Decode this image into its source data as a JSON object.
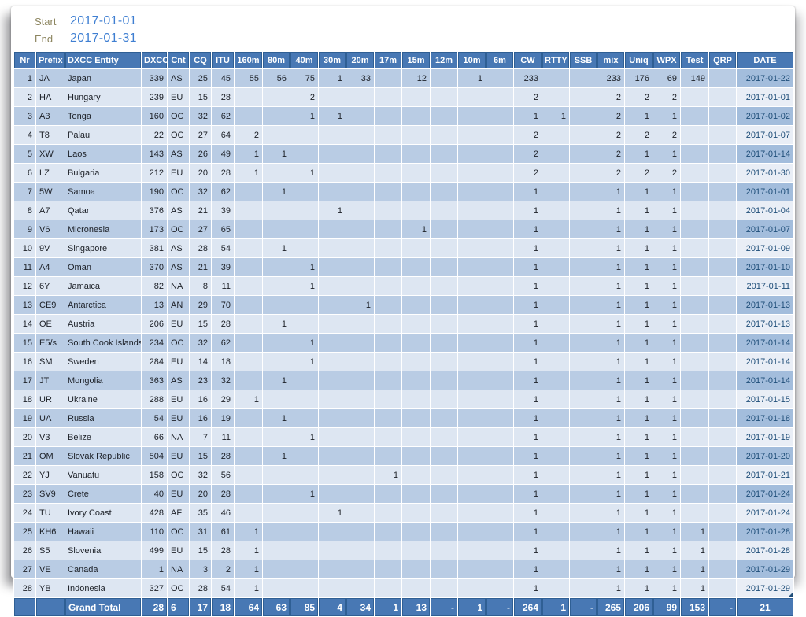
{
  "filters": {
    "start_label": "Start",
    "start_value": "2017-01-01",
    "end_label": "End",
    "end_value": "2017-01-31"
  },
  "colors": {
    "header_bg": "#4878b4",
    "header_border": "#2f5f94",
    "row_odd": "#b9cce4",
    "row_even": "#dde6f2",
    "date_odd": "#a3bddc",
    "date_even": "#e9eef6",
    "date_text": "#1f4e79",
    "filter_label": "#8c855f",
    "filter_value": "#3f7fd2"
  },
  "table": {
    "columns": [
      {
        "id": "nr",
        "label": "Nr",
        "width": 28,
        "align": "right",
        "header_align": "center"
      },
      {
        "id": "prefix",
        "label": "Prefix",
        "width": 37,
        "align": "left",
        "header_align": "center"
      },
      {
        "id": "entity",
        "label": "DXCC Entity",
        "width": 97,
        "align": "left",
        "header_align": "left"
      },
      {
        "id": "dxcc",
        "label": "DXCC",
        "width": 33,
        "align": "right",
        "header_align": "center"
      },
      {
        "id": "cnt",
        "label": "Cnt",
        "width": 28,
        "align": "left",
        "header_align": "center"
      },
      {
        "id": "cq",
        "label": "CQ",
        "width": 28,
        "align": "right",
        "header_align": "center"
      },
      {
        "id": "itu",
        "label": "ITU",
        "width": 29,
        "align": "right",
        "header_align": "center"
      },
      {
        "id": "160m",
        "label": "160m",
        "width": 36,
        "align": "right",
        "header_align": "center"
      },
      {
        "id": "80m",
        "label": "80m",
        "width": 35,
        "align": "right",
        "header_align": "center"
      },
      {
        "id": "40m",
        "label": "40m",
        "width": 36,
        "align": "right",
        "header_align": "center"
      },
      {
        "id": "30m",
        "label": "30m",
        "width": 35,
        "align": "right",
        "header_align": "center"
      },
      {
        "id": "20m",
        "label": "20m",
        "width": 36,
        "align": "right",
        "header_align": "center"
      },
      {
        "id": "17m",
        "label": "17m",
        "width": 35,
        "align": "right",
        "header_align": "center"
      },
      {
        "id": "15m",
        "label": "15m",
        "width": 36,
        "align": "right",
        "header_align": "center"
      },
      {
        "id": "12m",
        "label": "12m",
        "width": 35,
        "align": "right",
        "header_align": "center"
      },
      {
        "id": "10m",
        "label": "10m",
        "width": 36,
        "align": "right",
        "header_align": "center"
      },
      {
        "id": "6m",
        "label": "6m",
        "width": 35,
        "align": "right",
        "header_align": "center"
      },
      {
        "id": "cw",
        "label": "CW",
        "width": 36,
        "align": "right",
        "header_align": "center"
      },
      {
        "id": "rtty",
        "label": "RTTY",
        "width": 35,
        "align": "right",
        "header_align": "center"
      },
      {
        "id": "ssb",
        "label": "SSB",
        "width": 35,
        "align": "right",
        "header_align": "center"
      },
      {
        "id": "mix",
        "label": "mix",
        "width": 35,
        "align": "right",
        "header_align": "center"
      },
      {
        "id": "uniq",
        "label": "Uniq",
        "width": 36,
        "align": "right",
        "header_align": "center"
      },
      {
        "id": "wpx",
        "label": "WPX",
        "width": 35,
        "align": "right",
        "header_align": "center"
      },
      {
        "id": "test",
        "label": "Test",
        "width": 36,
        "align": "right",
        "header_align": "center"
      },
      {
        "id": "qrp",
        "label": "QRP",
        "width": 35,
        "align": "right",
        "header_align": "center"
      },
      {
        "id": "date",
        "label": "DATE",
        "width": 73,
        "align": "right",
        "header_align": "center"
      }
    ],
    "rows": [
      [
        1,
        "JA",
        "Japan",
        339,
        "AS",
        25,
        45,
        55,
        56,
        75,
        1,
        33,
        "",
        12,
        "",
        1,
        "",
        233,
        "",
        "",
        233,
        176,
        69,
        149,
        "",
        "2017-01-22"
      ],
      [
        2,
        "HA",
        "Hungary",
        239,
        "EU",
        15,
        28,
        "",
        "",
        2,
        "",
        "",
        "",
        "",
        "",
        "",
        "",
        2,
        "",
        "",
        2,
        2,
        2,
        "",
        "",
        "2017-01-01"
      ],
      [
        3,
        "A3",
        "Tonga",
        160,
        "OC",
        32,
        62,
        "",
        "",
        1,
        1,
        "",
        "",
        "",
        "",
        "",
        "",
        1,
        1,
        "",
        2,
        1,
        1,
        "",
        "",
        "2017-01-02"
      ],
      [
        4,
        "T8",
        "Palau",
        22,
        "OC",
        27,
        64,
        2,
        "",
        "",
        "",
        "",
        "",
        "",
        "",
        "",
        "",
        2,
        "",
        "",
        2,
        2,
        2,
        "",
        "",
        "2017-01-07"
      ],
      [
        5,
        "XW",
        "Laos",
        143,
        "AS",
        26,
        49,
        1,
        1,
        "",
        "",
        "",
        "",
        "",
        "",
        "",
        "",
        2,
        "",
        "",
        2,
        1,
        1,
        "",
        "",
        "2017-01-14"
      ],
      [
        6,
        "LZ",
        "Bulgaria",
        212,
        "EU",
        20,
        28,
        1,
        "",
        1,
        "",
        "",
        "",
        "",
        "",
        "",
        "",
        2,
        "",
        "",
        2,
        2,
        2,
        "",
        "",
        "2017-01-30"
      ],
      [
        7,
        "5W",
        "Samoa",
        190,
        "OC",
        32,
        62,
        "",
        1,
        "",
        "",
        "",
        "",
        "",
        "",
        "",
        "",
        1,
        "",
        "",
        1,
        1,
        1,
        "",
        "",
        "2017-01-01"
      ],
      [
        8,
        "A7",
        "Qatar",
        376,
        "AS",
        21,
        39,
        "",
        "",
        "",
        1,
        "",
        "",
        "",
        "",
        "",
        "",
        1,
        "",
        "",
        1,
        1,
        1,
        "",
        "",
        "2017-01-04"
      ],
      [
        9,
        "V6",
        "Micronesia",
        173,
        "OC",
        27,
        65,
        "",
        "",
        "",
        "",
        "",
        "",
        1,
        "",
        "",
        "",
        1,
        "",
        "",
        1,
        1,
        1,
        "",
        "",
        "2017-01-07"
      ],
      [
        10,
        "9V",
        "Singapore",
        381,
        "AS",
        28,
        54,
        "",
        1,
        "",
        "",
        "",
        "",
        "",
        "",
        "",
        "",
        1,
        "",
        "",
        1,
        1,
        1,
        "",
        "",
        "2017-01-09"
      ],
      [
        11,
        "A4",
        "Oman",
        370,
        "AS",
        21,
        39,
        "",
        "",
        1,
        "",
        "",
        "",
        "",
        "",
        "",
        "",
        1,
        "",
        "",
        1,
        1,
        1,
        "",
        "",
        "2017-01-10"
      ],
      [
        12,
        "6Y",
        "Jamaica",
        82,
        "NA",
        8,
        11,
        "",
        "",
        1,
        "",
        "",
        "",
        "",
        "",
        "",
        "",
        1,
        "",
        "",
        1,
        1,
        1,
        "",
        "",
        "2017-01-11"
      ],
      [
        13,
        "CE9",
        "Antarctica",
        13,
        "AN",
        29,
        70,
        "",
        "",
        "",
        "",
        1,
        "",
        "",
        "",
        "",
        "",
        1,
        "",
        "",
        1,
        1,
        1,
        "",
        "",
        "2017-01-13"
      ],
      [
        14,
        "OE",
        "Austria",
        206,
        "EU",
        15,
        28,
        "",
        1,
        "",
        "",
        "",
        "",
        "",
        "",
        "",
        "",
        1,
        "",
        "",
        1,
        1,
        1,
        "",
        "",
        "2017-01-13"
      ],
      [
        15,
        "E5/s",
        "South Cook Islands",
        234,
        "OC",
        32,
        62,
        "",
        "",
        1,
        "",
        "",
        "",
        "",
        "",
        "",
        "",
        1,
        "",
        "",
        1,
        1,
        1,
        "",
        "",
        "2017-01-14"
      ],
      [
        16,
        "SM",
        "Sweden",
        284,
        "EU",
        14,
        18,
        "",
        "",
        1,
        "",
        "",
        "",
        "",
        "",
        "",
        "",
        1,
        "",
        "",
        1,
        1,
        1,
        "",
        "",
        "2017-01-14"
      ],
      [
        17,
        "JT",
        "Mongolia",
        363,
        "AS",
        23,
        32,
        "",
        1,
        "",
        "",
        "",
        "",
        "",
        "",
        "",
        "",
        1,
        "",
        "",
        1,
        1,
        1,
        "",
        "",
        "2017-01-14"
      ],
      [
        18,
        "UR",
        "Ukraine",
        288,
        "EU",
        16,
        29,
        1,
        "",
        "",
        "",
        "",
        "",
        "",
        "",
        "",
        "",
        1,
        "",
        "",
        1,
        1,
        1,
        "",
        "",
        "2017-01-15"
      ],
      [
        19,
        "UA",
        "Russia",
        54,
        "EU",
        16,
        19,
        "",
        1,
        "",
        "",
        "",
        "",
        "",
        "",
        "",
        "",
        1,
        "",
        "",
        1,
        1,
        1,
        "",
        "",
        "2017-01-18"
      ],
      [
        20,
        "V3",
        "Belize",
        66,
        "NA",
        7,
        11,
        "",
        "",
        1,
        "",
        "",
        "",
        "",
        "",
        "",
        "",
        1,
        "",
        "",
        1,
        1,
        1,
        "",
        "",
        "2017-01-19"
      ],
      [
        21,
        "OM",
        "Slovak Republic",
        504,
        "EU",
        15,
        28,
        "",
        1,
        "",
        "",
        "",
        "",
        "",
        "",
        "",
        "",
        1,
        "",
        "",
        1,
        1,
        1,
        "",
        "",
        "2017-01-20"
      ],
      [
        22,
        "YJ",
        "Vanuatu",
        158,
        "OC",
        32,
        56,
        "",
        "",
        "",
        "",
        "",
        1,
        "",
        "",
        "",
        "",
        1,
        "",
        "",
        1,
        1,
        1,
        "",
        "",
        "2017-01-21"
      ],
      [
        23,
        "SV9",
        "Crete",
        40,
        "EU",
        20,
        28,
        "",
        "",
        1,
        "",
        "",
        "",
        "",
        "",
        "",
        "",
        1,
        "",
        "",
        1,
        1,
        1,
        "",
        "",
        "2017-01-24"
      ],
      [
        24,
        "TU",
        "Ivory Coast",
        428,
        "AF",
        35,
        46,
        "",
        "",
        "",
        1,
        "",
        "",
        "",
        "",
        "",
        "",
        1,
        "",
        "",
        1,
        1,
        1,
        "",
        "",
        "2017-01-24"
      ],
      [
        25,
        "KH6",
        "Hawaii",
        110,
        "OC",
        31,
        61,
        1,
        "",
        "",
        "",
        "",
        "",
        "",
        "",
        "",
        "",
        1,
        "",
        "",
        1,
        1,
        1,
        1,
        "",
        "2017-01-28"
      ],
      [
        26,
        "S5",
        "Slovenia",
        499,
        "EU",
        15,
        28,
        1,
        "",
        "",
        "",
        "",
        "",
        "",
        "",
        "",
        "",
        1,
        "",
        "",
        1,
        1,
        1,
        1,
        "",
        "2017-01-28"
      ],
      [
        27,
        "VE",
        "Canada",
        1,
        "NA",
        3,
        2,
        1,
        "",
        "",
        "",
        "",
        "",
        "",
        "",
        "",
        "",
        1,
        "",
        "",
        1,
        1,
        1,
        1,
        "",
        "2017-01-29"
      ],
      [
        28,
        "YB",
        "Indonesia",
        327,
        "OC",
        28,
        54,
        1,
        "",
        "",
        "",
        "",
        "",
        "",
        "",
        "",
        "",
        1,
        "",
        "",
        1,
        1,
        1,
        1,
        "",
        "2017-01-29"
      ]
    ],
    "grand_total": [
      "",
      "",
      "Grand Total",
      28,
      6,
      17,
      18,
      64,
      63,
      85,
      4,
      34,
      1,
      13,
      "-",
      1,
      "-",
      264,
      1,
      "-",
      265,
      206,
      99,
      153,
      "-",
      21
    ],
    "note_marker": {
      "row_index": 27,
      "column_id": "date"
    }
  }
}
